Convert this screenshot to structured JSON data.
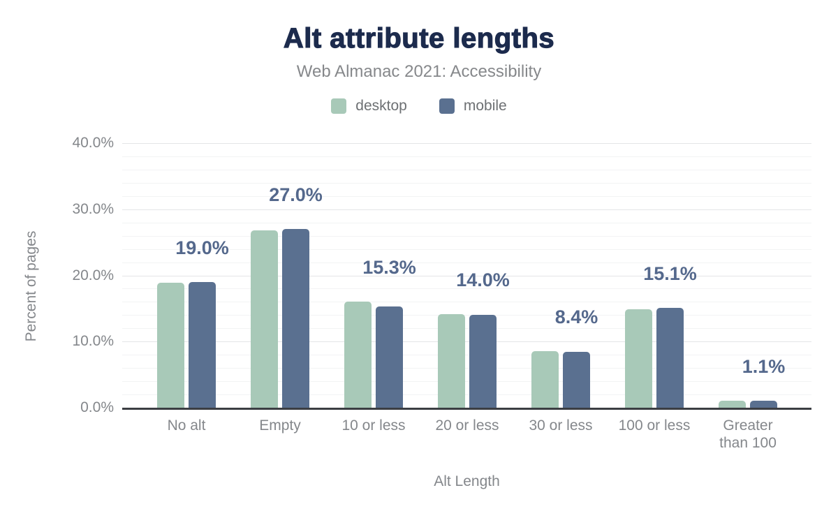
{
  "header": {
    "title": "Alt attribute lengths",
    "subtitle": "Web Almanac 2021: Accessibility"
  },
  "chart_data": {
    "type": "bar",
    "title": "Alt attribute lengths",
    "subtitle": "Web Almanac 2021: Accessibility",
    "categories": [
      "No alt",
      "Empty",
      "10 or less",
      "20 or less",
      "30 or less",
      "100 or less",
      "Greater than 100"
    ],
    "series": [
      {
        "name": "desktop",
        "color": "#a8c9b8",
        "values": [
          18.9,
          26.8,
          16.0,
          14.1,
          8.5,
          14.9,
          1.1
        ]
      },
      {
        "name": "mobile",
        "color": "#5a7090",
        "values": [
          19.0,
          27.0,
          15.3,
          14.0,
          8.4,
          15.1,
          1.1
        ]
      }
    ],
    "data_labels": {
      "labeled_series": "mobile",
      "values": [
        "19.0%",
        "27.0%",
        "15.3%",
        "14.0%",
        "8.4%",
        "15.1%",
        "1.1%"
      ]
    },
    "xlabel": "Alt Length",
    "ylabel": "Percent of pages",
    "ylim": [
      0,
      40
    ],
    "yticks": [
      {
        "value": 0,
        "label": "0.0%"
      },
      {
        "value": 10,
        "label": "10.0%"
      },
      {
        "value": 20,
        "label": "20.0%"
      },
      {
        "value": 30,
        "label": "30.0%"
      },
      {
        "value": 40,
        "label": "40.0%"
      }
    ],
    "grid": {
      "minor_step": 2,
      "major_step": 10,
      "grid_on": true
    },
    "legend_position": "top"
  },
  "colors": {
    "title": "#1c2b4d",
    "subtitle": "#86888b",
    "axis_text": "#84878b",
    "value_label": "#54688c",
    "axis_line": "#3b3e43",
    "grid_major": "#e4e5e7",
    "grid_minor": "#f2f3f4",
    "desktop": "#a8c9b8",
    "mobile": "#5a7090"
  }
}
